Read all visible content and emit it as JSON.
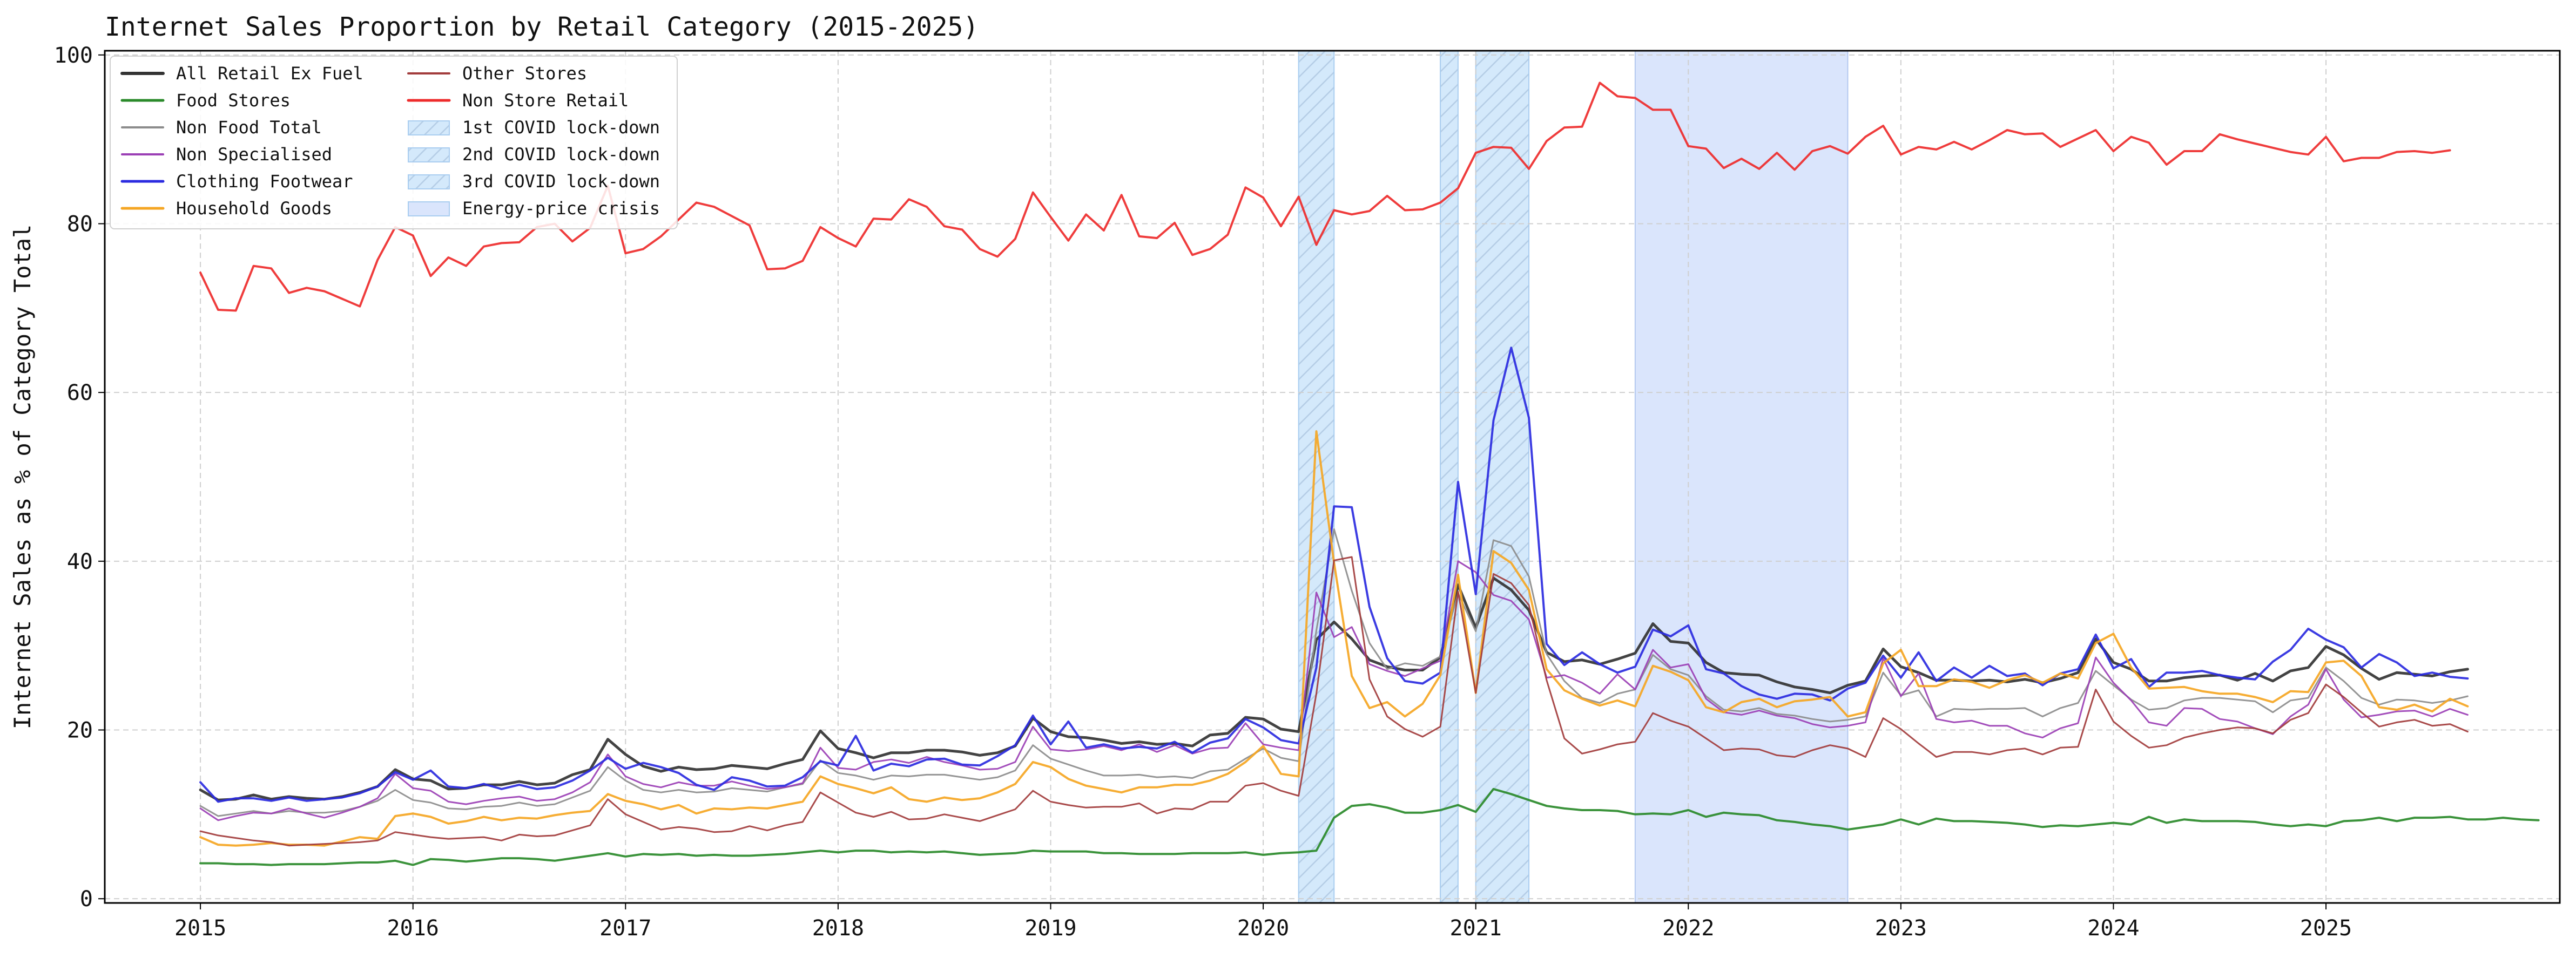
{
  "chart_data": {
    "type": "line",
    "title": "Internet Sales Proportion by Retail Category (2015-2025)",
    "xlabel": "",
    "ylabel": "Internet Sales as % of Category Total",
    "xlim": [
      2014.55,
      2026.1
    ],
    "ylim": [
      -0.5,
      100.5
    ],
    "x_ticks": [
      "2015",
      "2016",
      "2017",
      "2018",
      "2019",
      "2020",
      "2021",
      "2022",
      "2023",
      "2024",
      "2025"
    ],
    "y_ticks": [
      "0",
      "20",
      "40",
      "60",
      "80",
      "100"
    ],
    "grid": true,
    "legend_placement": "top-left",
    "x_start": "2015-01",
    "x_step": "1 month",
    "series": [
      {
        "name": "All Retail Ex Fuel",
        "color": "#333333",
        "width": 5,
        "values": [
          12.9,
          11.7,
          11.8,
          12.3,
          11.8,
          12.1,
          11.9,
          11.8,
          12.1,
          12.6,
          13.3,
          15.3,
          14.2,
          14.0,
          13.0,
          13.1,
          13.5,
          13.5,
          13.9,
          13.5,
          13.7,
          14.7,
          15.3,
          18.9,
          17.1,
          15.7,
          15.1,
          15.6,
          15.3,
          15.4,
          15.8,
          15.6,
          15.4,
          16.0,
          16.5,
          19.9,
          17.8,
          17.3,
          16.7,
          17.3,
          17.3,
          17.6,
          17.6,
          17.4,
          17.0,
          17.3,
          18.1,
          21.4,
          19.8,
          19.2,
          19.1,
          18.8,
          18.4,
          18.6,
          18.3,
          18.4,
          18.1,
          19.4,
          19.6,
          21.5,
          21.3,
          20.1,
          19.8,
          30.7,
          32.8,
          30.8,
          28.3,
          27.5,
          27.1,
          27.1,
          28.6,
          37.2,
          32.1,
          38.0,
          36.6,
          34.2,
          29.2,
          28.1,
          28.3,
          27.8,
          28.4,
          29.1,
          32.6,
          30.5,
          30.3,
          28.0,
          26.8,
          26.6,
          26.5,
          25.7,
          25.1,
          24.8,
          24.4,
          25.3,
          25.8,
          29.6,
          27.5,
          26.8,
          25.9,
          25.9,
          25.8,
          25.9,
          25.7,
          26.0,
          25.6,
          26.1,
          26.8,
          30.8,
          28.0,
          27.2,
          25.8,
          25.8,
          26.2,
          26.4,
          26.5,
          25.9,
          26.7,
          25.8,
          27.0,
          27.4,
          29.9,
          28.9,
          27.3,
          26.0,
          26.8,
          26.6,
          26.4,
          26.9,
          27.2
        ]
      },
      {
        "name": "Food Stores",
        "color": "#2a8a2a",
        "width": 4,
        "values": [
          4.2,
          4.2,
          4.1,
          4.1,
          4.0,
          4.1,
          4.1,
          4.1,
          4.2,
          4.3,
          4.3,
          4.5,
          4.0,
          4.7,
          4.6,
          4.4,
          4.6,
          4.8,
          4.8,
          4.7,
          4.5,
          4.8,
          5.1,
          5.4,
          5.0,
          5.3,
          5.2,
          5.3,
          5.1,
          5.2,
          5.1,
          5.1,
          5.2,
          5.3,
          5.5,
          5.7,
          5.5,
          5.7,
          5.7,
          5.5,
          5.6,
          5.5,
          5.6,
          5.4,
          5.2,
          5.3,
          5.4,
          5.7,
          5.6,
          5.6,
          5.6,
          5.4,
          5.4,
          5.3,
          5.3,
          5.3,
          5.4,
          5.4,
          5.4,
          5.5,
          5.2,
          5.4,
          5.5,
          5.7,
          9.6,
          11.0,
          11.2,
          10.8,
          10.2,
          10.2,
          10.5,
          11.1,
          10.3,
          13.0,
          12.4,
          11.7,
          11.0,
          10.7,
          10.5,
          10.5,
          10.4,
          10.0,
          10.1,
          10.0,
          10.5,
          9.7,
          10.2,
          10.0,
          9.9,
          9.3,
          9.1,
          8.8,
          8.6,
          8.2,
          8.5,
          8.8,
          9.4,
          8.8,
          9.5,
          9.2,
          9.2,
          9.1,
          9.0,
          8.8,
          8.5,
          8.7,
          8.6,
          8.8,
          9.0,
          8.8,
          9.7,
          9.0,
          9.4,
          9.2,
          9.2,
          9.2,
          9.1,
          8.8,
          8.6,
          8.8,
          8.6,
          9.2,
          9.3,
          9.6,
          9.2,
          9.6,
          9.6,
          9.7,
          9.4,
          9.4,
          9.6,
          9.4,
          9.3
        ]
      },
      {
        "name": "Non Food Total",
        "color": "#8c8c8c",
        "width": 3,
        "values": [
          11.0,
          9.8,
          10.1,
          10.4,
          10.1,
          10.4,
          10.2,
          10.2,
          10.4,
          10.9,
          11.6,
          12.9,
          11.7,
          11.4,
          10.7,
          10.6,
          10.9,
          11.0,
          11.4,
          11.0,
          11.2,
          12.0,
          12.8,
          15.6,
          14.0,
          12.9,
          12.6,
          12.9,
          12.6,
          12.7,
          13.1,
          12.9,
          12.7,
          13.2,
          13.6,
          16.4,
          14.9,
          14.6,
          14.1,
          14.6,
          14.5,
          14.7,
          14.7,
          14.4,
          14.1,
          14.4,
          15.2,
          18.2,
          16.6,
          15.9,
          15.2,
          14.6,
          14.6,
          14.7,
          14.4,
          14.5,
          14.3,
          15.1,
          15.3,
          16.6,
          17.8,
          16.7,
          16.3,
          31.8,
          43.8,
          36.5,
          30.3,
          27.2,
          27.9,
          27.6,
          28.7,
          36.2,
          31.7,
          42.5,
          41.8,
          38.2,
          29.0,
          25.8,
          23.8,
          23.2,
          24.3,
          24.8,
          28.9,
          27.2,
          26.5,
          24.0,
          22.4,
          22.2,
          22.6,
          21.9,
          21.7,
          21.3,
          21.0,
          21.2,
          21.6,
          26.8,
          24.1,
          24.7,
          21.6,
          22.5,
          22.4,
          22.5,
          22.5,
          22.6,
          21.6,
          22.6,
          23.2,
          27.0,
          25.3,
          23.6,
          22.4,
          22.6,
          23.5,
          23.8,
          23.8,
          23.6,
          23.4,
          22.1,
          23.5,
          23.8,
          27.4,
          25.8,
          23.8,
          23.0,
          23.6,
          23.5,
          23.2,
          23.5,
          24.0
        ]
      },
      {
        "name": "Non Specialised",
        "color": "#9b3fb5",
        "width": 3,
        "values": [
          10.7,
          9.3,
          9.8,
          10.2,
          10.1,
          10.7,
          10.1,
          9.6,
          10.2,
          10.9,
          11.9,
          14.8,
          13.1,
          12.8,
          11.5,
          11.2,
          11.6,
          11.9,
          12.1,
          11.6,
          11.8,
          12.6,
          13.8,
          17.1,
          14.5,
          13.6,
          13.2,
          13.8,
          13.4,
          13.4,
          13.9,
          13.4,
          13.0,
          13.2,
          13.7,
          17.9,
          15.5,
          15.3,
          16.2,
          16.5,
          16.1,
          16.8,
          16.2,
          15.8,
          15.3,
          15.4,
          16.2,
          20.4,
          17.7,
          17.5,
          17.7,
          18.1,
          17.6,
          18.3,
          17.4,
          18.2,
          17.2,
          17.8,
          17.9,
          20.8,
          18.3,
          17.9,
          17.6,
          36.3,
          31.0,
          32.2,
          27.8,
          27.0,
          26.4,
          27.3,
          28.2,
          40.0,
          38.7,
          36.0,
          35.3,
          33.1,
          26.2,
          26.5,
          25.6,
          24.3,
          26.6,
          24.8,
          29.5,
          27.4,
          27.8,
          23.7,
          22.1,
          21.8,
          22.3,
          21.7,
          21.4,
          20.7,
          20.3,
          20.5,
          20.9,
          28.5,
          24.0,
          26.7,
          21.3,
          20.9,
          21.1,
          20.5,
          20.5,
          19.6,
          19.1,
          20.2,
          20.8,
          28.6,
          25.6,
          23.5,
          20.9,
          20.5,
          22.6,
          22.5,
          21.3,
          21.0,
          20.2,
          19.5,
          21.6,
          23.0,
          27.2,
          23.6,
          21.5,
          21.8,
          22.2,
          22.3,
          21.6,
          22.5,
          21.8
        ]
      },
      {
        "name": "Clothing Footwear",
        "color": "#2b2be0",
        "width": 4,
        "values": [
          13.8,
          11.5,
          11.9,
          11.9,
          11.6,
          12.0,
          11.6,
          11.8,
          12.0,
          12.5,
          13.3,
          15.0,
          14.1,
          15.2,
          13.3,
          13.1,
          13.6,
          13.0,
          13.5,
          13.0,
          13.2,
          14.0,
          15.2,
          16.7,
          15.4,
          16.1,
          15.6,
          14.9,
          13.5,
          12.9,
          14.4,
          14.0,
          13.3,
          13.4,
          14.4,
          16.3,
          15.8,
          19.3,
          15.2,
          16.0,
          15.7,
          16.5,
          16.6,
          15.9,
          15.8,
          16.9,
          18.2,
          21.7,
          18.3,
          21.0,
          17.9,
          18.3,
          17.8,
          18.0,
          17.8,
          18.6,
          17.3,
          18.5,
          19.0,
          21.3,
          20.3,
          18.8,
          18.4,
          27.4,
          46.5,
          46.4,
          34.6,
          28.5,
          25.8,
          25.5,
          26.8,
          49.4,
          36.1,
          56.7,
          65.3,
          57.0,
          30.2,
          27.7,
          29.2,
          27.8,
          26.8,
          27.5,
          31.9,
          31.1,
          32.4,
          27.2,
          26.7,
          25.2,
          24.2,
          23.7,
          24.3,
          24.2,
          23.5,
          24.9,
          25.6,
          28.8,
          26.2,
          29.2,
          25.8,
          27.4,
          26.2,
          27.6,
          26.4,
          26.7,
          25.3,
          26.7,
          27.2,
          31.3,
          27.3,
          28.4,
          25.1,
          26.8,
          26.8,
          27.0,
          26.5,
          26.2,
          26.0,
          28.1,
          29.5,
          32.0,
          30.7,
          29.8,
          27.4,
          29.0,
          28.0,
          26.4,
          26.8,
          26.3,
          26.1
        ]
      },
      {
        "name": "Household Goods",
        "color": "#f5a623",
        "width": 4,
        "values": [
          7.3,
          6.4,
          6.3,
          6.4,
          6.6,
          6.4,
          6.4,
          6.3,
          6.8,
          7.3,
          7.1,
          9.8,
          10.1,
          9.7,
          8.9,
          9.2,
          9.7,
          9.3,
          9.6,
          9.5,
          9.9,
          10.2,
          10.4,
          12.4,
          11.6,
          11.2,
          10.6,
          11.1,
          10.1,
          10.7,
          10.6,
          10.8,
          10.7,
          11.1,
          11.5,
          14.5,
          13.6,
          13.1,
          12.5,
          13.2,
          11.8,
          11.5,
          12.0,
          11.7,
          11.9,
          12.6,
          13.6,
          16.2,
          15.6,
          14.2,
          13.4,
          13.0,
          12.6,
          13.2,
          13.2,
          13.5,
          13.5,
          14.0,
          14.8,
          16.2,
          18.1,
          14.8,
          14.5,
          55.4,
          39.8,
          26.4,
          22.6,
          23.3,
          21.6,
          23.1,
          26.5,
          38.4,
          24.4,
          41.2,
          39.8,
          36.6,
          27.2,
          24.7,
          23.7,
          22.9,
          23.5,
          22.8,
          27.6,
          26.9,
          25.9,
          22.7,
          22.1,
          23.3,
          23.7,
          22.7,
          23.4,
          23.6,
          23.9,
          21.6,
          22.1,
          27.9,
          29.5,
          25.2,
          25.2,
          26.0,
          25.7,
          25.0,
          25.9,
          26.5,
          25.6,
          26.7,
          26.1,
          30.3,
          31.4,
          27.4,
          24.9,
          25.0,
          25.1,
          24.6,
          24.3,
          24.3,
          23.9,
          23.3,
          24.6,
          24.5,
          28.0,
          28.2,
          26.4,
          22.7,
          22.4,
          23.0,
          22.2,
          23.7,
          22.8
        ]
      },
      {
        "name": "Other Stores",
        "color": "#a23c3c",
        "width": 3,
        "values": [
          8.0,
          7.5,
          7.2,
          6.9,
          6.7,
          6.3,
          6.4,
          6.5,
          6.6,
          6.7,
          6.9,
          7.9,
          7.6,
          7.3,
          7.1,
          7.2,
          7.3,
          6.9,
          7.6,
          7.4,
          7.5,
          8.1,
          8.7,
          11.8,
          10.0,
          9.1,
          8.2,
          8.5,
          8.3,
          7.9,
          8.0,
          8.6,
          8.1,
          8.7,
          9.1,
          12.6,
          11.4,
          10.2,
          9.7,
          10.3,
          9.4,
          9.5,
          10.0,
          9.6,
          9.2,
          9.9,
          10.6,
          12.8,
          11.5,
          11.1,
          10.8,
          10.9,
          10.9,
          11.3,
          10.1,
          10.7,
          10.6,
          11.5,
          11.5,
          13.4,
          13.7,
          12.8,
          12.2,
          24.3,
          40.1,
          40.5,
          26.0,
          21.6,
          20.1,
          19.2,
          20.4,
          36.4,
          24.4,
          38.5,
          37.4,
          34.8,
          25.9,
          19.0,
          17.2,
          17.7,
          18.3,
          18.6,
          22.0,
          21.1,
          20.4,
          19.0,
          17.6,
          17.8,
          17.7,
          17.0,
          16.8,
          17.6,
          18.2,
          17.8,
          16.8,
          21.4,
          20.1,
          18.4,
          16.8,
          17.4,
          17.4,
          17.1,
          17.6,
          17.8,
          17.1,
          17.9,
          18.0,
          24.8,
          21.0,
          19.3,
          17.9,
          18.2,
          19.1,
          19.6,
          20.0,
          20.3,
          20.2,
          19.6,
          21.2,
          22.0,
          25.4,
          23.9,
          22.1,
          20.4,
          20.9,
          21.2,
          20.5,
          20.7,
          19.8
        ]
      },
      {
        "name": "Non Store Retail",
        "color": "#ee2b2b",
        "width": 4,
        "values": [
          74.2,
          69.8,
          69.7,
          75.0,
          74.7,
          71.8,
          72.4,
          72.0,
          71.1,
          70.2,
          75.7,
          79.6,
          78.6,
          73.8,
          76.0,
          75.0,
          77.3,
          77.7,
          77.8,
          79.6,
          80.0,
          77.9,
          79.5,
          84.5,
          76.5,
          77.0,
          78.5,
          80.5,
          82.5,
          82.0,
          80.9,
          79.8,
          74.6,
          74.7,
          75.6,
          79.6,
          78.3,
          77.3,
          80.6,
          80.5,
          82.9,
          82.0,
          79.7,
          79.3,
          77.0,
          76.1,
          78.2,
          83.7,
          80.8,
          78.0,
          81.1,
          79.2,
          83.4,
          78.5,
          78.3,
          80.1,
          76.3,
          77.0,
          78.7,
          84.3,
          83.1,
          79.7,
          83.2,
          77.5,
          81.6,
          81.1,
          81.5,
          83.3,
          81.6,
          81.7,
          82.5,
          84.2,
          88.4,
          89.1,
          89.0,
          86.5,
          89.8,
          91.4,
          91.5,
          96.7,
          95.1,
          94.9,
          93.5,
          93.5,
          89.2,
          88.9,
          86.6,
          87.7,
          86.5,
          88.4,
          86.4,
          88.6,
          89.2,
          88.3,
          90.3,
          91.6,
          88.2,
          89.1,
          88.8,
          89.7,
          88.8,
          89.9,
          91.1,
          90.6,
          90.7,
          89.1,
          90.1,
          91.1,
          88.6,
          90.3,
          89.6,
          87.0,
          88.6,
          88.6,
          90.6,
          90.0,
          89.5,
          89.0,
          88.5,
          88.2,
          90.3,
          87.4,
          87.8,
          87.8,
          88.5,
          88.6,
          88.4,
          88.7
        ]
      }
    ],
    "shaded_periods": [
      {
        "name": "1st COVID lock-down",
        "start": "2020-03-01",
        "end": "2020-05-01",
        "color": "#d4e9fb",
        "hatch": true
      },
      {
        "name": "2nd COVID lock-down",
        "start": "2020-11-01",
        "end": "2020-12-01",
        "color": "#d4e9fb",
        "hatch": true
      },
      {
        "name": "3rd COVID lock-down",
        "start": "2021-01-01",
        "end": "2021-04-01",
        "color": "#d4e9fb",
        "hatch": true
      },
      {
        "name": "Energy-price crisis",
        "start": "2021-10-01",
        "end": "2022-10-01",
        "color": "#dae5fc",
        "hatch": false
      }
    ]
  }
}
